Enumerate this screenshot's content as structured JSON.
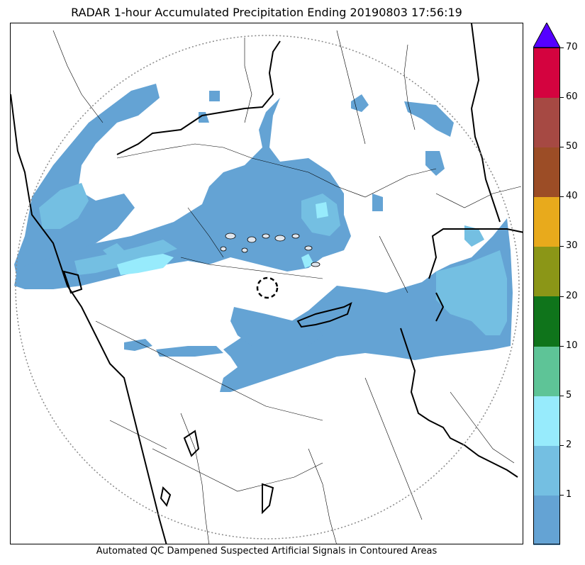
{
  "title": "RADAR 1-hour Accumulated Precipitation Ending 20190803 17:56:19",
  "footer_note": "Automated QC Dampened Suspected Artificial Signals in Contoured Areas",
  "colorbar": {
    "extend_top_color": "#5500ff",
    "levels": [
      {
        "lower": 0,
        "upper": 1,
        "color": "#64a3d4"
      },
      {
        "lower": 1,
        "upper": 2,
        "color": "#74bfe2"
      },
      {
        "lower": 2,
        "upper": 5,
        "color": "#97ebfc"
      },
      {
        "lower": 5,
        "upper": 10,
        "color": "#5ec497"
      },
      {
        "lower": 10,
        "upper": 20,
        "color": "#0f741b"
      },
      {
        "lower": 20,
        "upper": 30,
        "color": "#8b9617"
      },
      {
        "lower": 30,
        "upper": 40,
        "color": "#e8aa1c"
      },
      {
        "lower": 40,
        "upper": 50,
        "color": "#9c4d26"
      },
      {
        "lower": 50,
        "upper": 60,
        "color": "#a64943"
      },
      {
        "lower": 60,
        "upper": 70,
        "color": "#d4033f"
      }
    ],
    "tick_labels": [
      "1",
      "2",
      "5",
      "10",
      "20",
      "30",
      "40",
      "50",
      "60",
      "70"
    ]
  },
  "map": {
    "precip_colors": {
      "light": "#64a3d4",
      "moderate": "#74bfe2",
      "heavy": "#97ebfc"
    },
    "range_ring_color": "#888888",
    "boundary_color": "#000000"
  }
}
